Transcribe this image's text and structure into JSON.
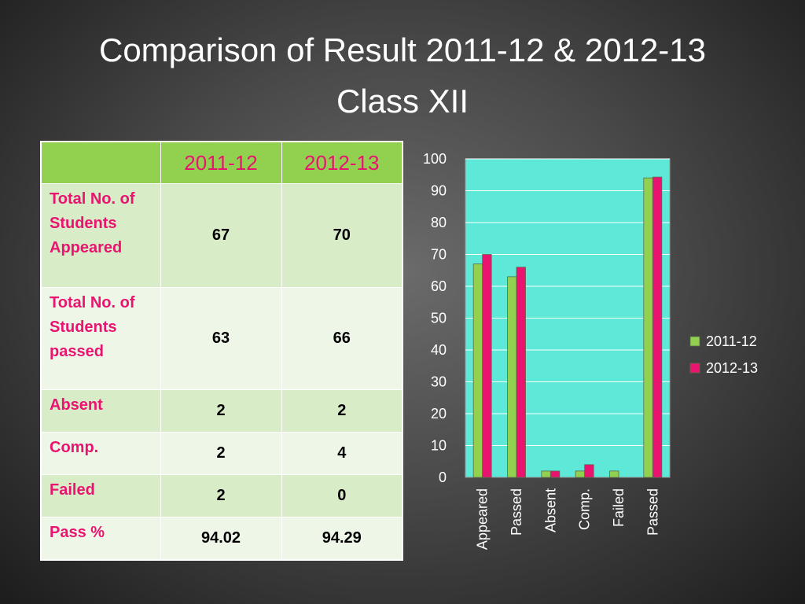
{
  "title_line1": "Comparison of Result 2011-12 & 2012-13",
  "title_line2": "Class XII",
  "table": {
    "headers": [
      "",
      "2011-12",
      "2012-13"
    ],
    "rows": [
      {
        "label": "Total No. of Students Appeared",
        "v1": "67",
        "v2": "70"
      },
      {
        "label": "Total No. of Students passed",
        "v1": "63",
        "v2": "66"
      },
      {
        "label": "Absent",
        "v1": "2",
        "v2": "2"
      },
      {
        "label": "Comp.",
        "v1": "2",
        "v2": "4"
      },
      {
        "label": "Failed",
        "v1": "2",
        "v2": "0"
      },
      {
        "label": "Pass %",
        "v1": "94.02",
        "v2": "94.29"
      }
    ]
  },
  "colors": {
    "series_2011": "#92d050",
    "series_2012": "#e8146f",
    "plot_background": "#5ee8d8",
    "title_text": "#ffffff"
  },
  "chart_data": {
    "type": "bar",
    "categories": [
      "Appeared",
      "Passed",
      "Absent",
      "Comp.",
      "Failed",
      "Passed"
    ],
    "series": [
      {
        "name": "2011-12",
        "values": [
          67,
          63,
          2,
          2,
          2,
          94.02
        ]
      },
      {
        "name": "2012-13",
        "values": [
          70,
          66,
          2,
          4,
          0,
          94.29
        ]
      }
    ],
    "ylim": [
      0,
      100
    ],
    "yticks": [
      0,
      10,
      20,
      30,
      40,
      50,
      60,
      70,
      80,
      90,
      100
    ],
    "grid": true,
    "legend": "right"
  }
}
